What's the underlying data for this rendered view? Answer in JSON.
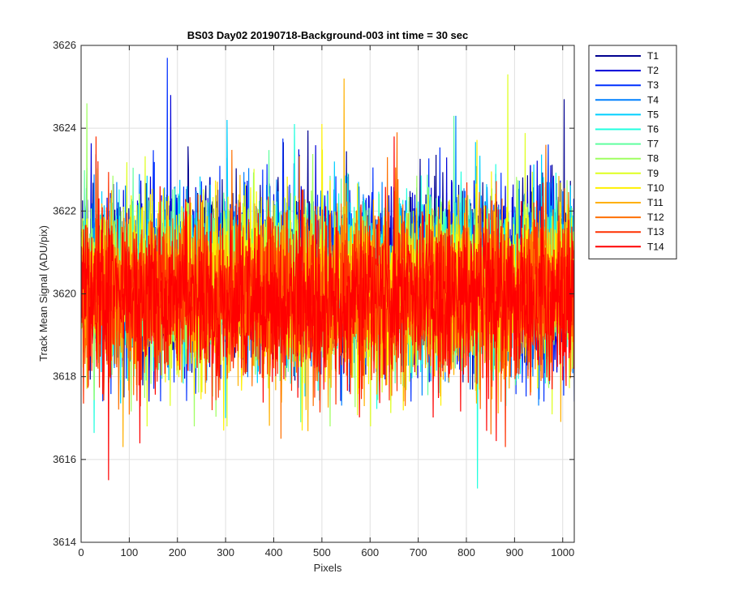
{
  "chart_data": {
    "type": "line",
    "title": "BS03 Day02 20190718-Background-003 int time = 30 sec",
    "xlabel": "Pixels",
    "ylabel": "Track Mean Signal (ADU/pix)",
    "xlim": [
      0,
      1024
    ],
    "ylim": [
      3614,
      3626
    ],
    "x_ticks": [
      0,
      100,
      200,
      300,
      400,
      500,
      600,
      700,
      800,
      900,
      1000
    ],
    "x_tick_labels": [
      "0",
      "100",
      "200",
      "300",
      "400",
      "500",
      "600",
      "700",
      "800",
      "900",
      "1000"
    ],
    "y_ticks": [
      3614,
      3616,
      3618,
      3620,
      3622,
      3624,
      3626
    ],
    "y_tick_labels": [
      "3614",
      "3616",
      "3618",
      "3620",
      "3622",
      "3624",
      "3626"
    ],
    "grid": true,
    "legend_position": "outside-top-right",
    "n_points_per_series": 1024,
    "series": [
      {
        "name": "T1",
        "color": "#00008F",
        "mean": 3620.55,
        "std": 1.05,
        "min": 3617.5,
        "max": 3624.7
      },
      {
        "name": "T2",
        "color": "#0000D8",
        "mean": 3620.5,
        "std": 1.05,
        "min": 3617.4,
        "max": 3624.8
      },
      {
        "name": "T3",
        "color": "#0030FF",
        "mean": 3620.45,
        "std": 1.05,
        "min": 3617.4,
        "max": 3625.7
      },
      {
        "name": "T4",
        "color": "#0080FF",
        "mean": 3620.4,
        "std": 1.0,
        "min": 3617.3,
        "max": 3624.3
      },
      {
        "name": "T5",
        "color": "#00CFFF",
        "mean": 3620.35,
        "std": 1.0,
        "min": 3617.0,
        "max": 3624.2
      },
      {
        "name": "T6",
        "color": "#20FFDF",
        "mean": 3620.3,
        "std": 1.0,
        "min": 3615.3,
        "max": 3624.1
      },
      {
        "name": "T7",
        "color": "#60FF9F",
        "mean": 3620.25,
        "std": 1.0,
        "min": 3616.9,
        "max": 3624.3
      },
      {
        "name": "T8",
        "color": "#9FFF60",
        "mean": 3620.2,
        "std": 1.0,
        "min": 3616.8,
        "max": 3624.6
      },
      {
        "name": "T9",
        "color": "#DFFF20",
        "mean": 3620.15,
        "std": 1.0,
        "min": 3616.8,
        "max": 3625.3
      },
      {
        "name": "T10",
        "color": "#FFF000",
        "mean": 3620.1,
        "std": 1.0,
        "min": 3616.7,
        "max": 3624.1
      },
      {
        "name": "T11",
        "color": "#FFB000",
        "mean": 3620.05,
        "std": 1.0,
        "min": 3616.3,
        "max": 3625.2
      },
      {
        "name": "T12",
        "color": "#FF7000",
        "mean": 3620.0,
        "std": 1.0,
        "min": 3616.5,
        "max": 3623.9
      },
      {
        "name": "T13",
        "color": "#FF3000",
        "mean": 3619.95,
        "std": 1.0,
        "min": 3616.3,
        "max": 3623.8
      },
      {
        "name": "T14",
        "color": "#FF0000",
        "mean": 3619.9,
        "std": 1.05,
        "min": 3615.5,
        "max": 3623.8
      }
    ]
  }
}
